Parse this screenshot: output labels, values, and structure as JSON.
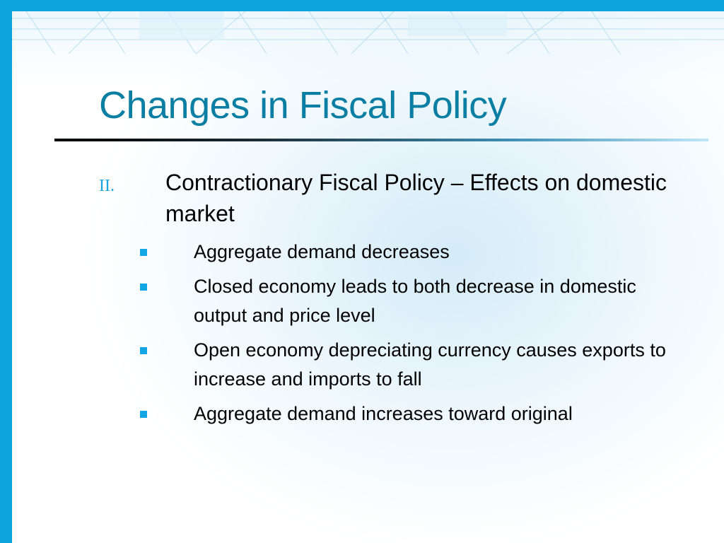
{
  "slide": {
    "title": "Changes in Fiscal Policy",
    "section": {
      "number": "II.",
      "text": "Contractionary Fiscal Policy – Effects on domestic market"
    },
    "bullets": [
      "Aggregate demand decreases",
      "Closed economy leads to both decrease in domestic output and price level",
      "Open economy depreciating currency causes exports to increase and imports to fall",
      "Aggregate demand increases toward original"
    ]
  },
  "colors": {
    "accent_bar": "#0aa3dd",
    "title": "#0b7ea3",
    "bullet": "#13a6e4"
  }
}
